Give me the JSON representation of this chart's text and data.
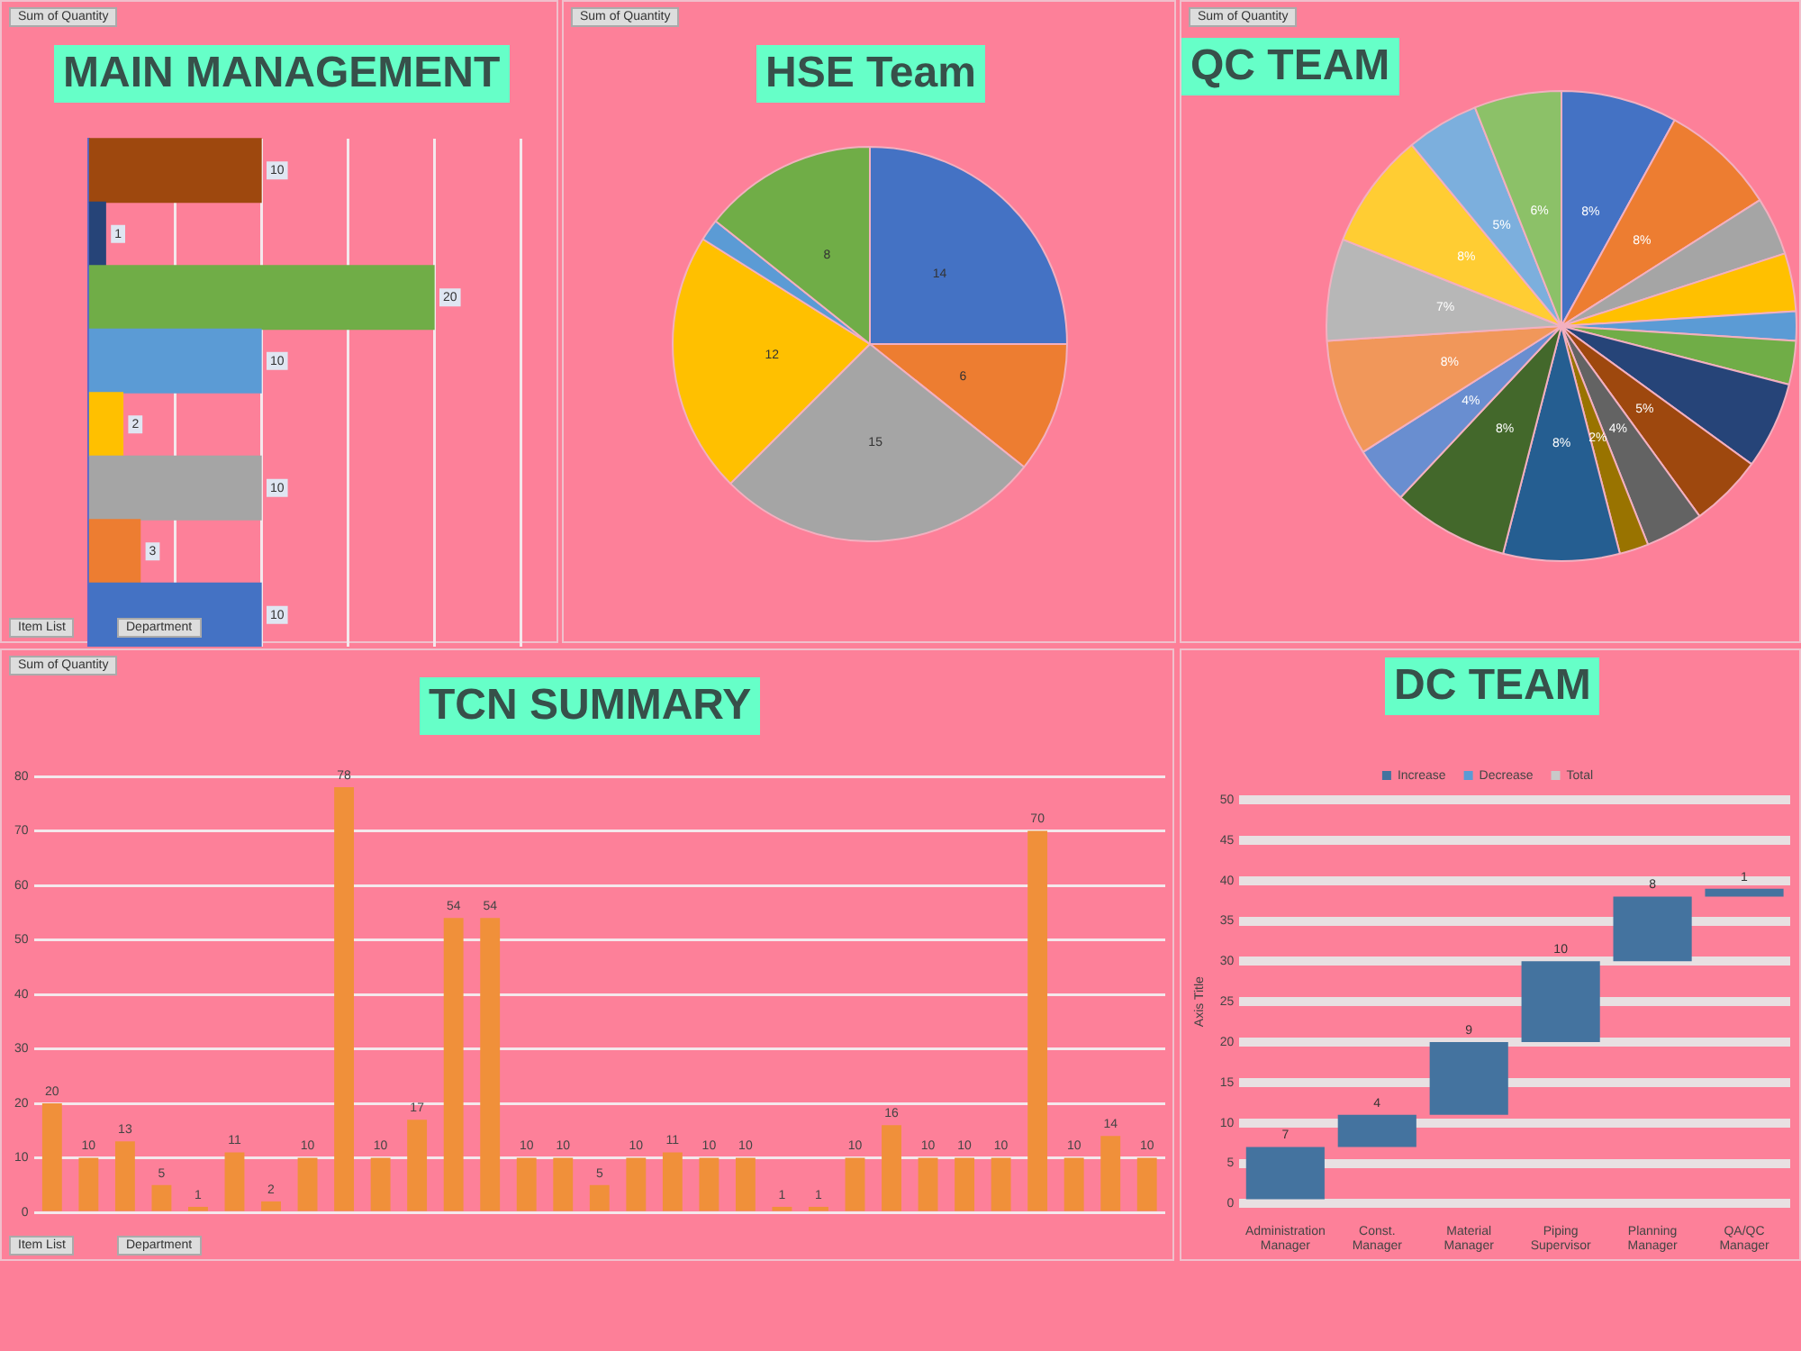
{
  "chart_data": [
    {
      "type": "bar",
      "title": "MAIN MANAGEMENT",
      "orientation": "horizontal",
      "categories": [
        null,
        null,
        null,
        null,
        null,
        null,
        null,
        null
      ],
      "values": [
        10,
        1,
        20,
        10,
        2,
        10,
        3,
        10
      ],
      "colors": [
        "#9e480e",
        "#264478",
        "#70ad47",
        "#5b9bd5",
        "#ffc000",
        "#a5a5a5",
        "#ed7d31",
        "#4472c4"
      ],
      "xlim": [
        0,
        25
      ],
      "xticks": [
        {
          "value": 0,
          "label": null
        },
        {
          "value": 5,
          "label": null
        },
        {
          "value": 10,
          "label": null
        },
        {
          "value": 15,
          "label": null
        },
        {
          "value": 20,
          "label": null
        },
        {
          "value": 25,
          "label": null
        }
      ],
      "grid": "x",
      "tick_labels": false,
      "data_labels": true,
      "annotations": [
        "Sum of Quantity",
        "Item List",
        "Department"
      ]
    },
    {
      "type": "pie",
      "title": "HSE Team",
      "categories": [
        null,
        null,
        null,
        null,
        null,
        null
      ],
      "values": [
        14,
        6,
        15,
        12,
        1,
        8
      ],
      "colors": [
        "#4472c4",
        "#ed7d31",
        "#a5a5a5",
        "#ffc000",
        "#5b9bd5",
        "#70ad47"
      ],
      "value_labels": [
        "14",
        "6",
        "15",
        "12",
        null,
        "8"
      ],
      "annotations": [
        "Sum of Quantity"
      ]
    },
    {
      "type": "pie",
      "title": "QC TEAM",
      "categories": [
        null,
        null,
        null,
        null,
        null,
        null,
        null,
        null,
        null,
        null,
        null,
        null,
        null,
        null,
        null,
        null,
        null,
        null
      ],
      "values": [
        8,
        8,
        4,
        4,
        2,
        3,
        6,
        5,
        4,
        2,
        8,
        8,
        4,
        8,
        7,
        8,
        5,
        6
      ],
      "colors": [
        "#4472c4",
        "#ed7d31",
        "#a5a5a5",
        "#ffc000",
        "#5b9bd5",
        "#70ad47",
        "#264478",
        "#9e480e",
        "#636363",
        "#997300",
        "#255e91",
        "#43682b",
        "#698ed0",
        "#f1975a",
        "#b7b7b7",
        "#ffcd33",
        "#7cafdd",
        "#8cc168"
      ],
      "value_labels": [
        "8%",
        "8%",
        null,
        null,
        null,
        null,
        null,
        "5%",
        "4%",
        "2%",
        "8%",
        "8%",
        "4%",
        "8%",
        "7%",
        "8%",
        "5%",
        "6%"
      ],
      "annotations": [
        "Sum of Quantity"
      ]
    },
    {
      "type": "bar",
      "title": "TCN SUMMARY",
      "categories": [
        null,
        null,
        null,
        null,
        null,
        null,
        null,
        null,
        null,
        null,
        null,
        null,
        null,
        null,
        null,
        null,
        null,
        null,
        null,
        null,
        null,
        null,
        null,
        null,
        null,
        null,
        null,
        null,
        null,
        null,
        null
      ],
      "values": [
        20,
        10,
        13,
        5,
        1,
        11,
        2,
        10,
        78,
        10,
        17,
        54,
        54,
        10,
        10,
        5,
        10,
        11,
        10,
        10,
        1,
        1,
        10,
        16,
        10,
        10,
        10,
        70,
        10,
        14,
        10
      ],
      "color": "#f0903a",
      "ylim": [
        0,
        80
      ],
      "yticks": [
        0,
        10,
        20,
        30,
        40,
        50,
        60,
        70,
        80
      ],
      "grid": "y",
      "tick_labels": "y",
      "data_labels": true,
      "annotations": [
        "Sum of Quantity",
        "Item List",
        "Department"
      ]
    },
    {
      "type": "bar",
      "title": "DC TEAM",
      "categories": [
        "Administration Manager",
        "Const. Manager",
        "Material Manager",
        "Piping Supervisor",
        "Planning Manager",
        "QA/QC Manager"
      ],
      "series": [
        {
          "name": "Increase",
          "color": "#44739f",
          "values": [
            7,
            4,
            9,
            10,
            8,
            1
          ],
          "base": [
            0,
            7,
            11,
            20,
            30,
            38
          ]
        },
        {
          "name": "Decrease",
          "color": "#5b9bd5",
          "values": [
            null,
            null,
            null,
            null,
            null,
            null
          ]
        },
        {
          "name": "Total",
          "color": "#c9c9c9",
          "values": [
            null,
            null,
            null,
            null,
            null,
            null
          ]
        }
      ],
      "ylim": [
        0,
        50
      ],
      "yticks": [
        0,
        5,
        10,
        15,
        20,
        25,
        30,
        35,
        40,
        45,
        50
      ],
      "ylabel": "Axis Title",
      "grid": "y",
      "legend": "top",
      "data_labels": true
    }
  ]
}
